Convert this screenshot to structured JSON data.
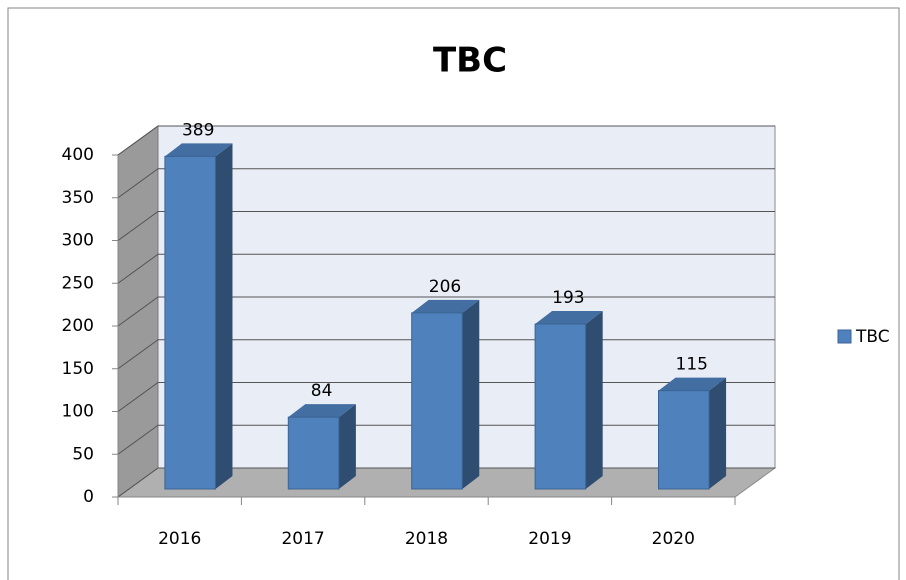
{
  "chart_data": {
    "type": "bar3d",
    "title": "TBC",
    "categories": [
      "2016",
      "2017",
      "2018",
      "2019",
      "2020"
    ],
    "series": [
      {
        "name": "TBC",
        "color": "#4f81bd",
        "values": [
          389,
          84,
          206,
          193,
          115
        ]
      }
    ],
    "ylim": [
      0,
      400
    ],
    "yticks": [
      0,
      50,
      100,
      150,
      200,
      250,
      300,
      350,
      400
    ],
    "grid": true,
    "legend": "right"
  }
}
